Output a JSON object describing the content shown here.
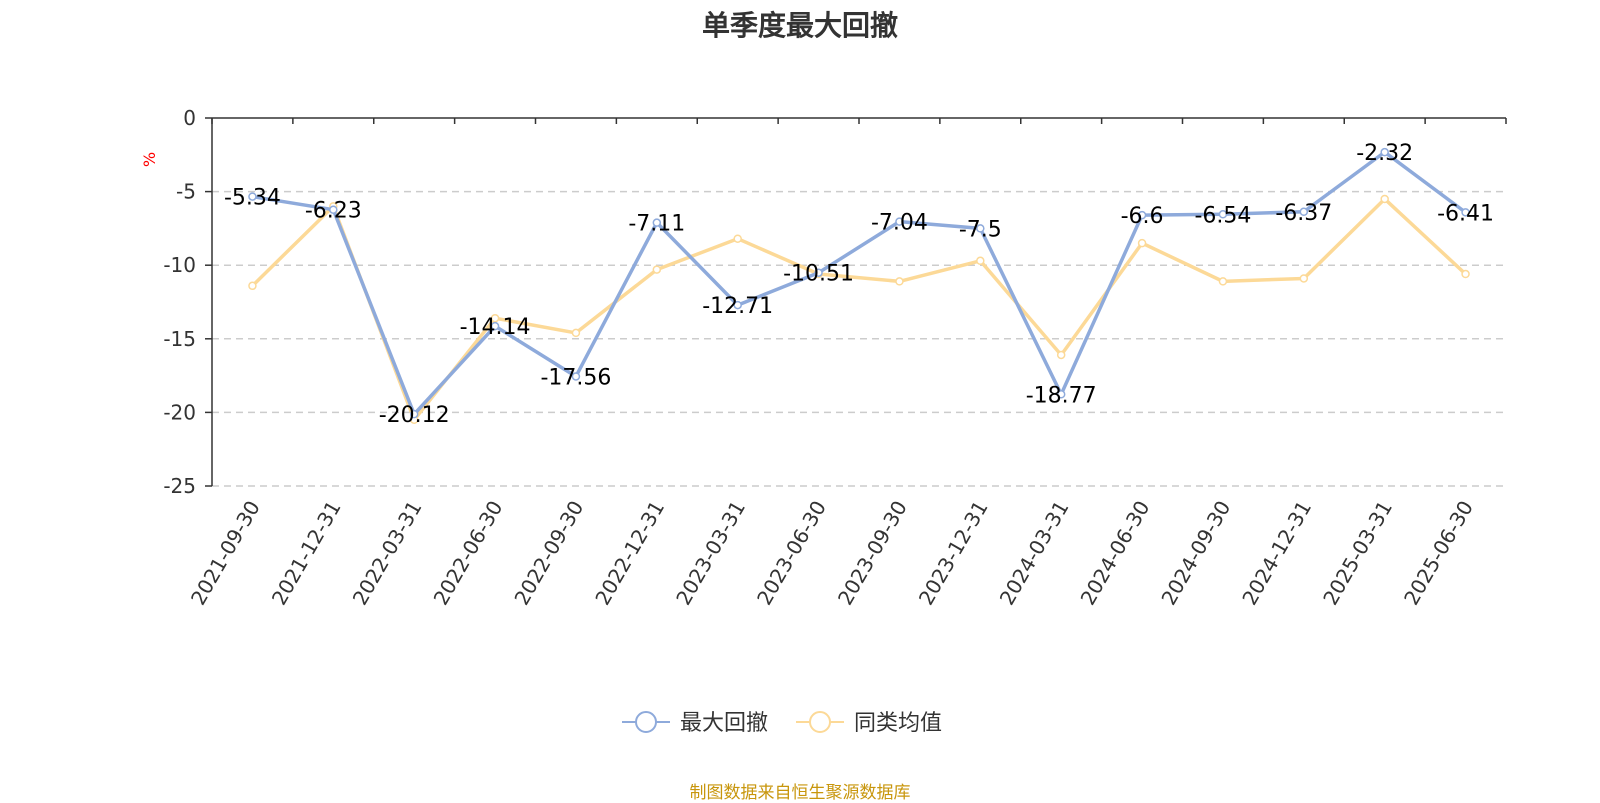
{
  "chart_data": {
    "type": "line",
    "title": "单季度最大回撤",
    "unit": "%",
    "categories": [
      "2021-09-30",
      "2021-12-31",
      "2022-03-31",
      "2022-06-30",
      "2022-09-30",
      "2022-12-31",
      "2023-03-31",
      "2023-06-30",
      "2023-09-30",
      "2023-12-31",
      "2024-03-31",
      "2024-06-30",
      "2024-09-30",
      "2024-12-31",
      "2025-03-31",
      "2025-06-30"
    ],
    "series": [
      {
        "name": "最大回撤",
        "color": "#8eaadb",
        "values": [
          -5.34,
          -6.23,
          -20.12,
          -14.14,
          -17.56,
          -7.11,
          -12.71,
          -10.51,
          -7.04,
          -7.5,
          -18.77,
          -6.6,
          -6.54,
          -6.37,
          -2.32,
          -6.41
        ],
        "labels": [
          "-5.34",
          "-6.23",
          "-20.12",
          "-14.14",
          "-17.56",
          "-7.11",
          "-12.71",
          "-10.51",
          "-7.04",
          "-7.5",
          "-18.77",
          "-6.6",
          "-6.54",
          "-6.37",
          "-2.32",
          "-6.41"
        ]
      },
      {
        "name": "同类均值",
        "color": "#fcd997",
        "values": [
          -11.4,
          -6.0,
          -20.5,
          -13.6,
          -14.6,
          -10.3,
          -8.2,
          -10.6,
          -11.1,
          -9.7,
          -16.1,
          -8.5,
          -11.1,
          -10.9,
          -5.5,
          -10.6
        ]
      }
    ],
    "ylim": [
      -25,
      0
    ],
    "yticks": [
      0,
      -5,
      -10,
      -15,
      -20,
      -25
    ],
    "grid": true,
    "legend_position": "bottom-center"
  },
  "footer": {
    "source": "制图数据来自恒生聚源数据库"
  }
}
